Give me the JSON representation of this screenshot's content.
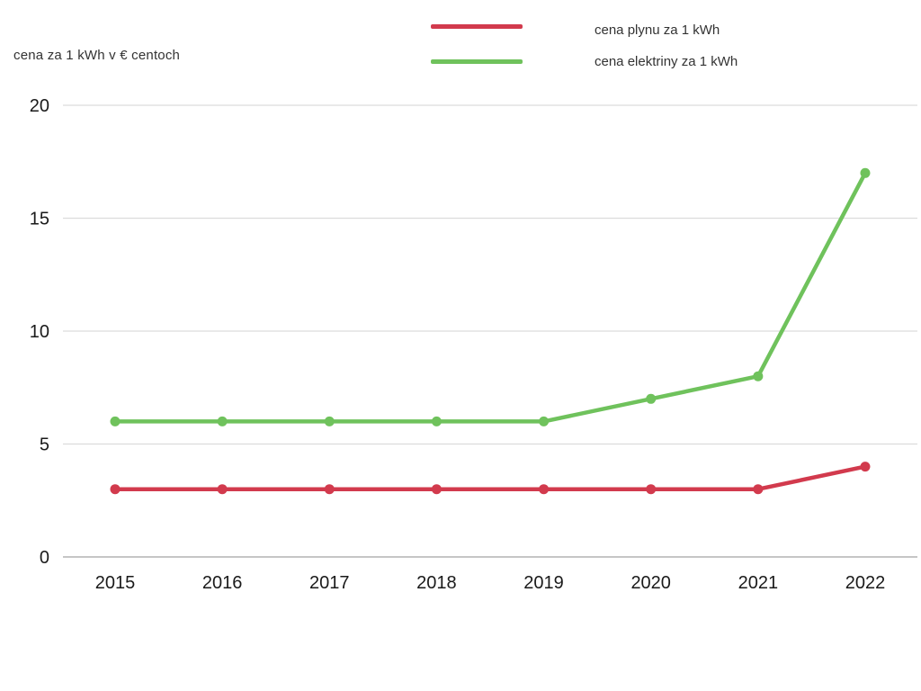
{
  "title": "cena za 1 kWh v € centoch",
  "chart_data": {
    "type": "line",
    "x": [
      "2015",
      "2016",
      "2017",
      "2018",
      "2019",
      "2020",
      "2021",
      "2022"
    ],
    "series": [
      {
        "name": "cena plynu za 1 kWh",
        "color": "#d23a4d",
        "values": [
          3,
          3,
          3,
          3,
          3,
          3,
          3,
          4
        ]
      },
      {
        "name": "cena elektriny za 1 kWh",
        "color": "#6fc25c",
        "values": [
          6,
          6,
          6,
          6,
          6,
          7,
          8,
          17
        ]
      }
    ],
    "title": "cena za 1 kWh v € centoch",
    "xlabel": "",
    "ylabel": "cena za 1 kWh v € centoch",
    "y_ticks": [
      0,
      5,
      10,
      15,
      20
    ],
    "ylim": [
      0,
      20
    ],
    "grid": true,
    "legend_position": "top-right"
  },
  "colors": {
    "grid_line": "#dcdcdc",
    "zero_line": "#b3b3b3",
    "tick_text": "#1a1a1a",
    "label_text": "#333333",
    "background": "#ffffff"
  }
}
